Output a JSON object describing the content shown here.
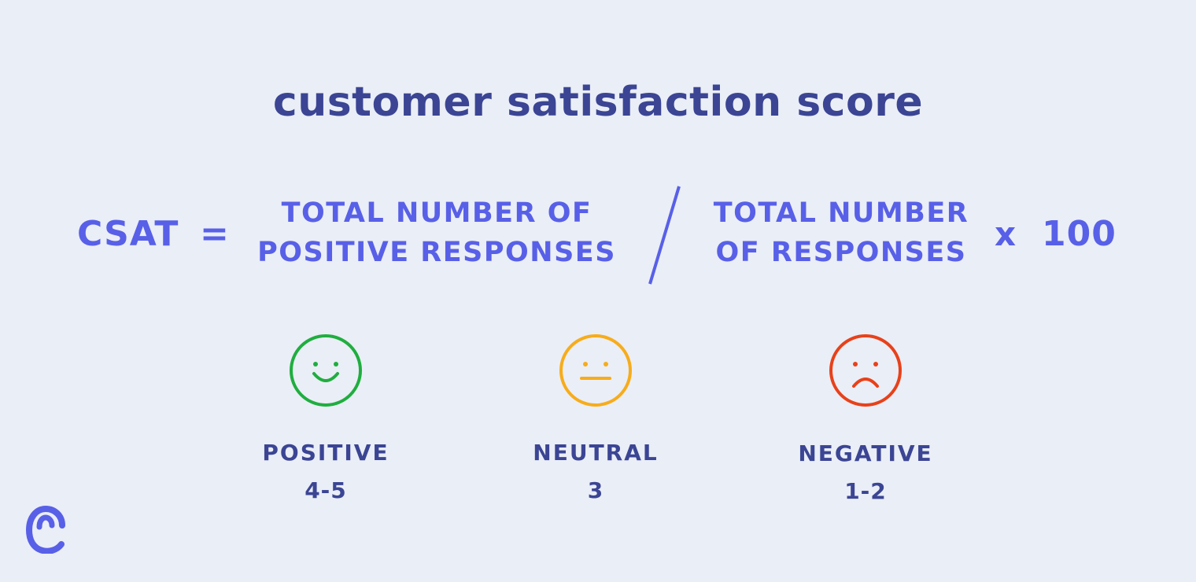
{
  "colors": {
    "background": "#eaeef6",
    "title": "#3b4594",
    "accent": "#5860e8",
    "label": "#3b4594",
    "positive": "#1fae3f",
    "neutral": "#f7ac1a",
    "negative": "#e8411a"
  },
  "title": "customer satisfaction score",
  "formula": {
    "lhs": "CSAT",
    "equals": "=",
    "numerator": {
      "line1": "TOTAL NUMBER OF",
      "line2": "POSITIVE RESPONSES"
    },
    "divider_icon": "slash-divider",
    "denominator": {
      "line1": "TOTAL NUMBER",
      "line2": "OF RESPONSES"
    },
    "times": "x",
    "multiplier": "100"
  },
  "categories": [
    {
      "icon": "smiling-face-icon",
      "label": "POSITIVE",
      "range": "4-5"
    },
    {
      "icon": "neutral-face-icon",
      "label": "NEUTRAL",
      "range": "3"
    },
    {
      "icon": "frowning-face-icon",
      "label": "NEGATIVE",
      "range": "1-2"
    }
  ],
  "logo_icon": "brand-logo-icon"
}
